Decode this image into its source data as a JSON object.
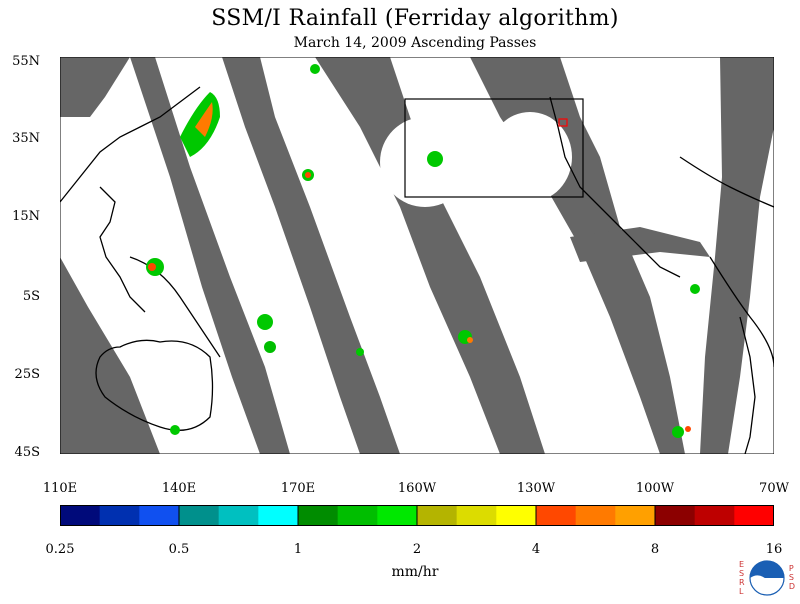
{
  "title": "SSM/I Rainfall (Ferriday algorithm)",
  "subtitle": "March 14, 2009  Ascending Passes",
  "lat_labels": [
    "55N",
    "35N",
    "15N",
    "5S",
    "25S",
    "45S"
  ],
  "lon_labels": [
    "110E",
    "140E",
    "170E",
    "160W",
    "130W",
    "100W",
    "70W"
  ],
  "colorbar": {
    "tick_labels": [
      "0.25",
      "0.5",
      "1",
      "2",
      "4",
      "8",
      "16"
    ],
    "units": "mm/hr",
    "colors": [
      "#000a7a",
      "#0030b0",
      "#1050f0",
      "#00908c",
      "#00c0c0",
      "#00ffff",
      "#008c00",
      "#00be00",
      "#00e800",
      "#b4b400",
      "#dcdc00",
      "#ffff00",
      "#ff4800",
      "#ff7a00",
      "#ffa000",
      "#8c0000",
      "#be0000",
      "#ff0000"
    ]
  },
  "map": {
    "lon_range": [
      110,
      290
    ],
    "lat_range": [
      -45,
      55
    ],
    "no_data_color": "#666666",
    "box_region": {
      "lon": [
        195,
        240
      ],
      "lat": [
        20,
        45
      ]
    }
  },
  "logo": {
    "left_letters": "ESRL",
    "right_letters": "PSD",
    "text": "NOAA"
  }
}
